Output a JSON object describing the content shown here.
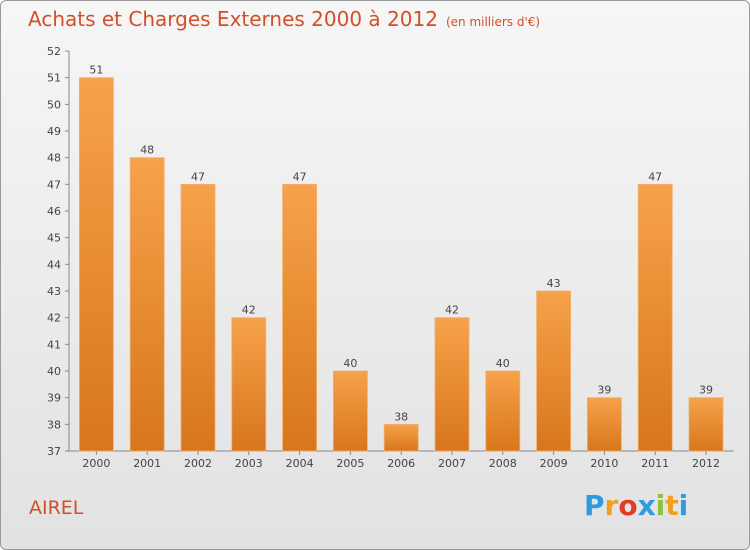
{
  "title": "Achats et Charges Externes 2000 à 2012",
  "subtitle": "(en milliers d'€)",
  "place": "AIREL",
  "brand": {
    "letters": [
      "P",
      "r",
      "o",
      "x",
      "i",
      "t",
      "i"
    ],
    "colors": [
      "#2d9be0",
      "#f0a020",
      "#e03c2a",
      "#2d9be0",
      "#8bc43f",
      "#f0a020",
      "#2d9be0"
    ]
  },
  "bar_color": "#f39a3e",
  "chart_data": {
    "type": "bar",
    "categories": [
      "2000",
      "2001",
      "2002",
      "2003",
      "2004",
      "2005",
      "2006",
      "2007",
      "2008",
      "2009",
      "2010",
      "2011",
      "2012"
    ],
    "values": [
      51,
      48,
      47,
      42,
      47,
      40,
      38,
      42,
      40,
      43,
      39,
      47,
      39
    ],
    "ylim": [
      37,
      52
    ],
    "yticks": [
      37,
      38,
      39,
      40,
      41,
      42,
      43,
      44,
      45,
      46,
      47,
      48,
      49,
      50,
      51,
      52
    ],
    "grid": false
  }
}
